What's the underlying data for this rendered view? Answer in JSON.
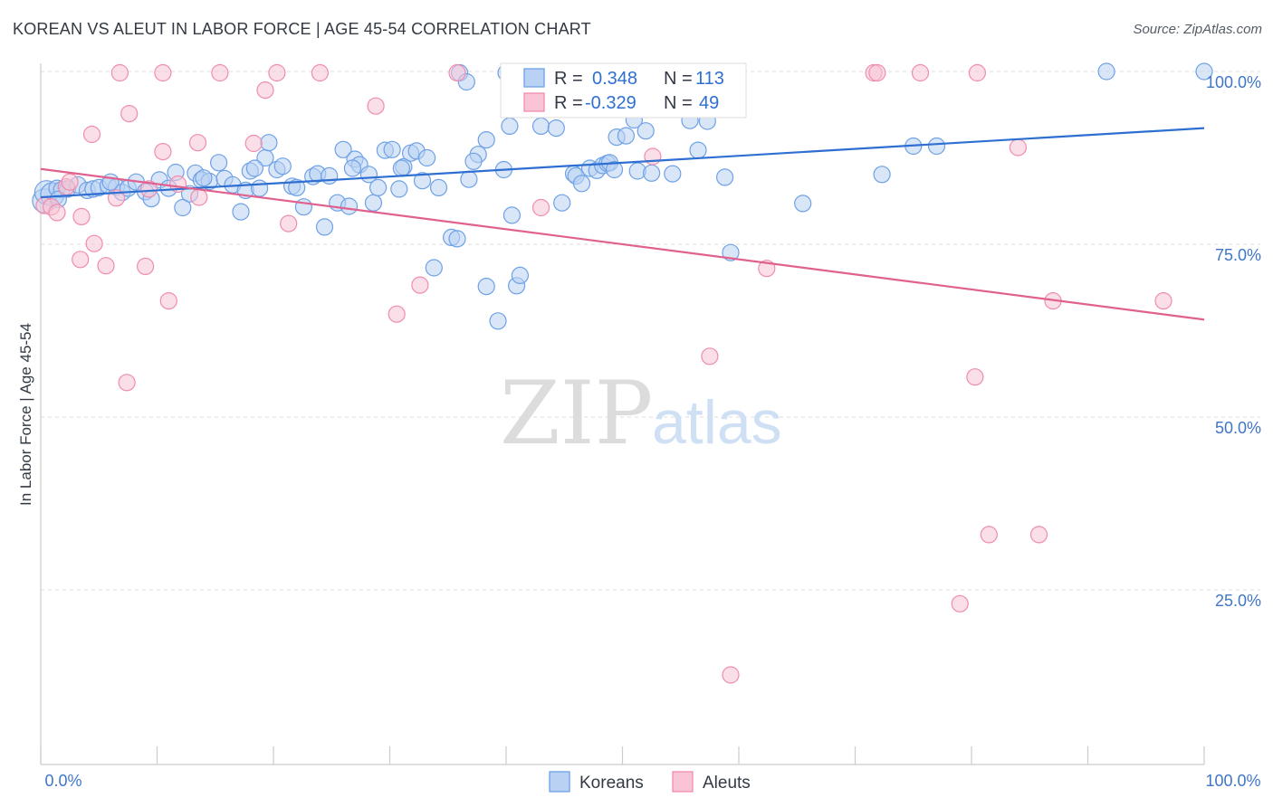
{
  "header": {
    "title": "KOREAN VS ALEUT IN LABOR FORCE | AGE 45-54 CORRELATION CHART",
    "source": "Source: ZipAtlas.com"
  },
  "watermark": {
    "zip": "ZIP",
    "atlas": "atlas"
  },
  "legend_box": {
    "r_label": "R =",
    "n_label": "N =",
    "rows": [
      {
        "r": "0.348",
        "n": "113",
        "color": "#6ea1e6"
      },
      {
        "r": "-0.329",
        "n": "49",
        "color": "#f08cae"
      }
    ]
  },
  "chart_data": {
    "type": "scatter",
    "ylabel": "In Labor Force | Age 45-54",
    "xlim": [
      0,
      100
    ],
    "ylim": [
      0,
      105
    ],
    "x_tick_labels": {
      "left": "0.0%",
      "right": "100.0%"
    },
    "y_ticks": [
      {
        "value": 25,
        "label": "25.0%"
      },
      {
        "value": 50,
        "label": "50.0%"
      },
      {
        "value": 75,
        "label": "75.0%"
      },
      {
        "value": 100,
        "label": "100.0%"
      }
    ],
    "grid": true,
    "series": [
      {
        "name": "Koreans",
        "color": "#6ea1e6",
        "fill": "#b9d2f3",
        "r": 0.348,
        "n": 113,
        "trend": {
          "x": [
            0,
            100
          ],
          "y": [
            81.8,
            91.8
          ]
        },
        "points": [
          [
            0.3,
            81.3
          ],
          [
            0.5,
            82.5
          ],
          [
            1.0,
            82.2
          ],
          [
            1.4,
            83.1
          ],
          [
            1.8,
            82.9
          ],
          [
            2.3,
            83.0
          ],
          [
            3.2,
            83.6
          ],
          [
            4.0,
            82.8
          ],
          [
            4.5,
            83.0
          ],
          [
            5.0,
            83.2
          ],
          [
            5.8,
            83.5
          ],
          [
            6.5,
            83.3
          ],
          [
            7.0,
            82.5
          ],
          [
            7.5,
            83.1
          ],
          [
            8.2,
            84.0
          ],
          [
            9.0,
            82.6
          ],
          [
            9.5,
            81.6
          ],
          [
            10.2,
            84.3
          ],
          [
            11.0,
            83.1
          ],
          [
            11.6,
            85.4
          ],
          [
            12.2,
            80.3
          ],
          [
            12.8,
            82.3
          ],
          [
            13.3,
            85.3
          ],
          [
            13.8,
            84.3
          ],
          [
            14.5,
            84.1
          ],
          [
            15.3,
            86.8
          ],
          [
            15.8,
            84.5
          ],
          [
            16.5,
            83.6
          ],
          [
            17.2,
            79.7
          ],
          [
            17.6,
            82.8
          ],
          [
            18.0,
            85.6
          ],
          [
            18.8,
            83.1
          ],
          [
            19.3,
            87.5
          ],
          [
            19.6,
            89.7
          ],
          [
            20.3,
            85.8
          ],
          [
            20.8,
            86.3
          ],
          [
            21.6,
            83.4
          ],
          [
            22.0,
            83.2
          ],
          [
            22.6,
            80.4
          ],
          [
            23.4,
            84.8
          ],
          [
            23.8,
            85.2
          ],
          [
            24.4,
            77.5
          ],
          [
            24.8,
            84.9
          ],
          [
            25.5,
            81.0
          ],
          [
            26.0,
            88.7
          ],
          [
            26.5,
            80.5
          ],
          [
            27.0,
            87.3
          ],
          [
            27.4,
            86.5
          ],
          [
            28.2,
            85.1
          ],
          [
            28.6,
            81.0
          ],
          [
            29.0,
            83.2
          ],
          [
            29.6,
            88.6
          ],
          [
            30.2,
            88.7
          ],
          [
            30.8,
            83.0
          ],
          [
            31.2,
            86.2
          ],
          [
            31.8,
            88.2
          ],
          [
            32.3,
            88.5
          ],
          [
            32.8,
            84.2
          ],
          [
            33.2,
            87.5
          ],
          [
            34.2,
            83.2
          ],
          [
            33.8,
            71.6
          ],
          [
            35.3,
            76.0
          ],
          [
            35.8,
            75.8
          ],
          [
            36.0,
            99.8
          ],
          [
            36.6,
            98.5
          ],
          [
            36.8,
            84.4
          ],
          [
            37.6,
            88.0
          ],
          [
            38.3,
            90.1
          ],
          [
            38.3,
            68.9
          ],
          [
            39.3,
            63.9
          ],
          [
            40.0,
            99.8
          ],
          [
            39.8,
            85.8
          ],
          [
            40.3,
            92.1
          ],
          [
            40.5,
            79.2
          ],
          [
            40.9,
            69.0
          ],
          [
            41.2,
            70.5
          ],
          [
            43.0,
            92.1
          ],
          [
            44.3,
            91.8
          ],
          [
            44.8,
            81.0
          ],
          [
            45.8,
            85.2
          ],
          [
            46.0,
            84.9
          ],
          [
            46.5,
            83.8
          ],
          [
            47.2,
            86.0
          ],
          [
            47.8,
            85.7
          ],
          [
            48.3,
            86.4
          ],
          [
            48.7,
            86.7
          ],
          [
            48.9,
            86.8
          ],
          [
            49.3,
            85.8
          ],
          [
            49.5,
            90.5
          ],
          [
            50.3,
            90.7
          ],
          [
            51.0,
            93.0
          ],
          [
            51.3,
            85.6
          ],
          [
            52.0,
            91.4
          ],
          [
            52.5,
            85.3
          ],
          [
            54.3,
            85.2
          ],
          [
            55.8,
            92.9
          ],
          [
            56.5,
            88.6
          ],
          [
            57.3,
            92.8
          ],
          [
            58.8,
            84.7
          ],
          [
            59.3,
            73.8
          ],
          [
            65.5,
            80.9
          ],
          [
            72.3,
            85.1
          ],
          [
            75.0,
            89.2
          ],
          [
            77.0,
            89.2
          ],
          [
            91.6,
            100.0
          ],
          [
            100.0,
            100.0
          ],
          [
            1.5,
            81.5
          ],
          [
            6.0,
            84.0
          ],
          [
            14.0,
            84.6
          ],
          [
            18.4,
            86.0
          ],
          [
            26.8,
            86.0
          ],
          [
            31.0,
            86.0
          ],
          [
            37.2,
            87.0
          ]
        ]
      },
      {
        "name": "Aleuts",
        "color": "#f08cae",
        "fill": "#f8c4d6",
        "r": -0.329,
        "n": 49,
        "trend": {
          "x": [
            0,
            100
          ],
          "y": [
            85.9,
            64.1
          ]
        },
        "points": [
          [
            0.3,
            80.6
          ],
          [
            0.9,
            80.4
          ],
          [
            1.4,
            79.6
          ],
          [
            2.2,
            83.3
          ],
          [
            2.5,
            84.0
          ],
          [
            3.5,
            79.0
          ],
          [
            3.4,
            72.8
          ],
          [
            4.6,
            75.1
          ],
          [
            4.4,
            90.9
          ],
          [
            5.6,
            71.9
          ],
          [
            6.5,
            81.7
          ],
          [
            6.8,
            99.8
          ],
          [
            7.6,
            93.9
          ],
          [
            7.4,
            55.0
          ],
          [
            9.0,
            71.8
          ],
          [
            9.3,
            83.0
          ],
          [
            10.5,
            88.4
          ],
          [
            10.5,
            99.8
          ],
          [
            11.0,
            66.8
          ],
          [
            11.8,
            83.7
          ],
          [
            13.5,
            89.7
          ],
          [
            13.6,
            81.8
          ],
          [
            15.4,
            99.8
          ],
          [
            18.3,
            89.6
          ],
          [
            19.3,
            97.3
          ],
          [
            20.3,
            99.8
          ],
          [
            21.3,
            78.0
          ],
          [
            24.0,
            99.8
          ],
          [
            28.8,
            95.0
          ],
          [
            30.6,
            64.9
          ],
          [
            32.6,
            69.1
          ],
          [
            35.8,
            99.8
          ],
          [
            43.0,
            80.3
          ],
          [
            52.6,
            87.7
          ],
          [
            52.5,
            99.8
          ],
          [
            57.5,
            58.8
          ],
          [
            59.3,
            12.7
          ],
          [
            62.4,
            71.5
          ],
          [
            71.6,
            99.8
          ],
          [
            71.9,
            99.8
          ],
          [
            75.6,
            99.8
          ],
          [
            79.0,
            23.0
          ],
          [
            80.3,
            55.8
          ],
          [
            80.5,
            99.8
          ],
          [
            81.5,
            33.0
          ],
          [
            84.0,
            89.0
          ],
          [
            85.8,
            33.0
          ],
          [
            87.0,
            66.8
          ],
          [
            96.5,
            66.8
          ]
        ]
      }
    ]
  },
  "bottom_legend": [
    {
      "label": "Koreans",
      "color": "#6ea1e6",
      "fill": "#b9d2f3"
    },
    {
      "label": "Aleuts",
      "color": "#f08cae",
      "fill": "#f8c4d6"
    }
  ]
}
